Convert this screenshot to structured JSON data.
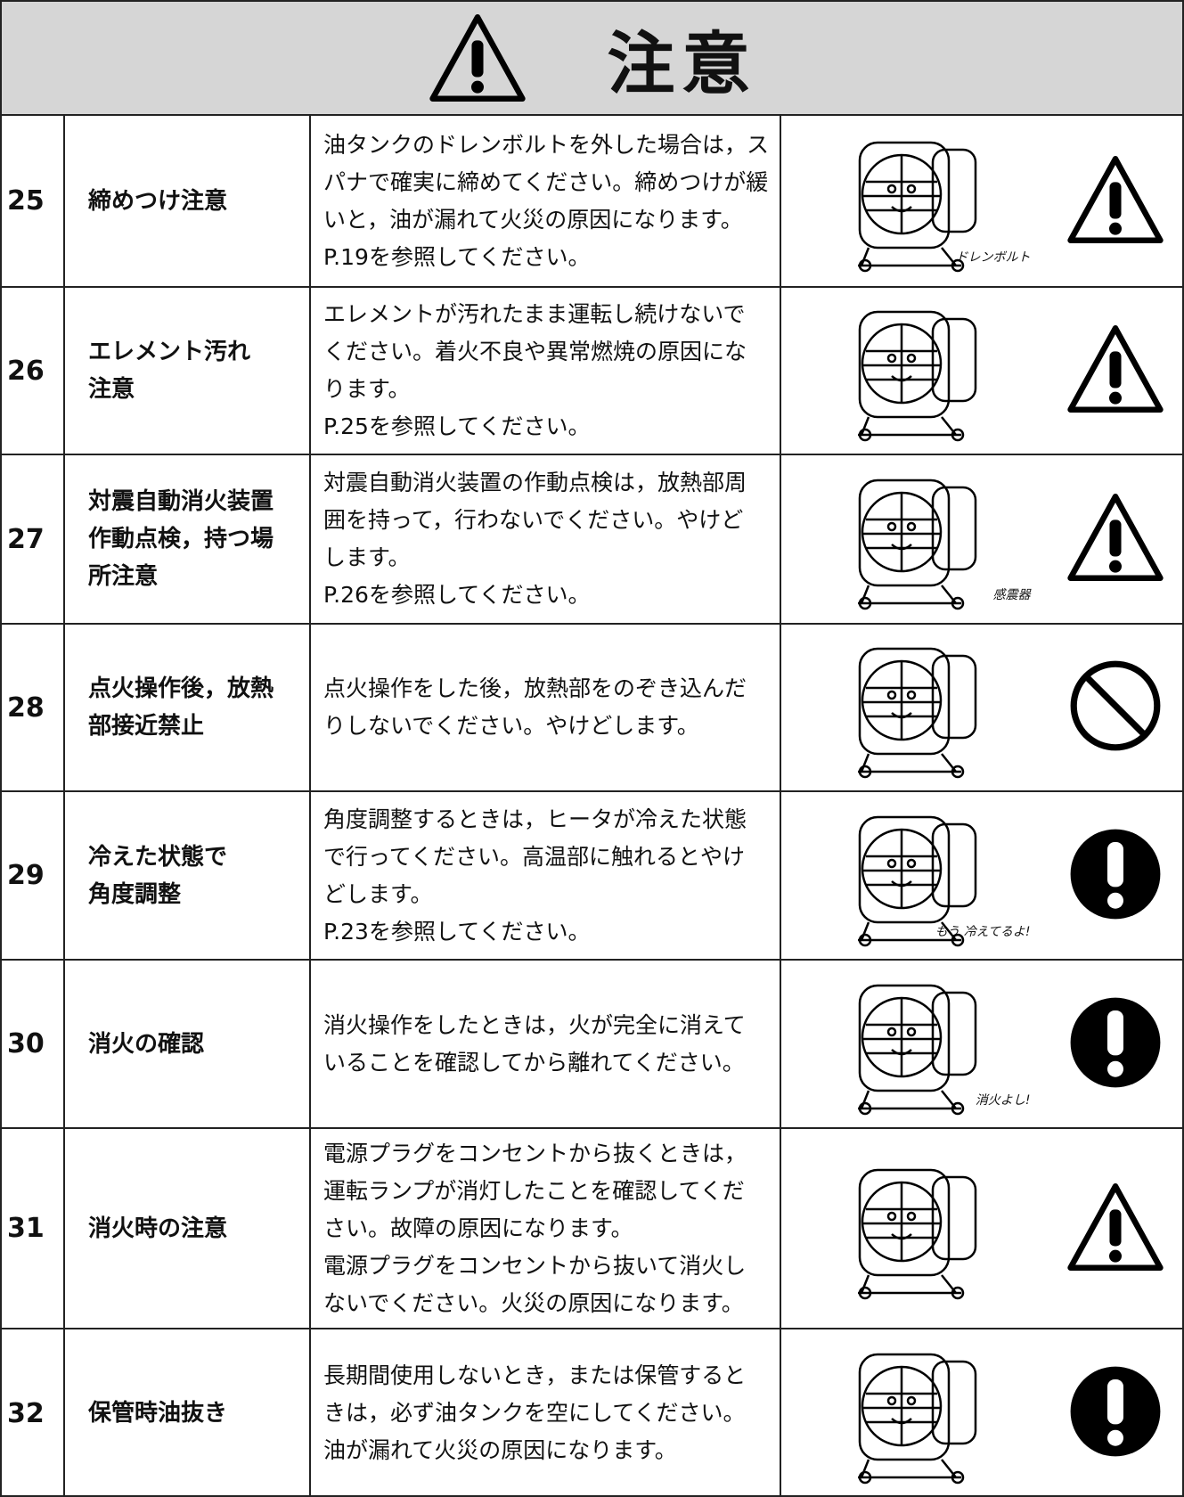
{
  "header": {
    "title": "注意"
  },
  "rows": [
    {
      "number": "25",
      "title": [
        "締めつけ注意"
      ],
      "description": [
        "油タンクのドレンボルトを外した場合は，ス",
        "パナで確実に締めてください。締めつけが緩",
        "いと，油が漏れて火災の原因になります。",
        "P.19を参照してください。"
      ],
      "note": "ドレンボルト"
    },
    {
      "number": "26",
      "title": [
        "エレメント汚れ",
        "注意"
      ],
      "description": [
        "エレメントが汚れたまま運転し続けないで",
        "ください。着火不良や異常燃焼の原因にな",
        "ります。",
        "P.25を参照してください。"
      ]
    },
    {
      "number": "27",
      "title": [
        "対震自動消火装置",
        "作動点検，持つ場",
        "所注意"
      ],
      "description": [
        "対震自動消火装置の作動点検は，放熱部周",
        "囲を持って，行わないでください。やけど",
        "します。",
        "P.26を参照してください。"
      ],
      "note": "感震器"
    },
    {
      "number": "28",
      "title": [
        "点火操作後，放熱",
        "部接近禁止"
      ],
      "description": [
        "点火操作をした後，放熱部をのぞき込んだ",
        "りしないでください。やけどします。"
      ]
    },
    {
      "number": "29",
      "title": [
        "冷えた状態で",
        "角度調整"
      ],
      "description": [
        "角度調整するときは，ヒータが冷えた状態",
        "で行ってください。高温部に触れるとやけ",
        "どします。",
        "P.23を参照してください。"
      ],
      "note": "もう 冷えてるよ!"
    },
    {
      "number": "30",
      "title": [
        "消火の確認"
      ],
      "description": [
        "消火操作をしたときは，火が完全に消えて",
        "いることを確認してから離れてください。"
      ],
      "note": "消火よし!"
    },
    {
      "number": "31",
      "title": [
        "消火時の注意"
      ],
      "description": [
        "電源プラグをコンセントから抜くときは，",
        "運転ランプが消灯したことを確認してくだ",
        "さい。故障の原因になります。",
        "電源プラグをコンセントから抜いて消火し",
        "ないでください。火災の原因になります。"
      ]
    },
    {
      "number": "32",
      "title": [
        "保管時油抜き"
      ],
      "description": [
        "長期間使用しないとき，または保管すると",
        "きは，必ず油タンクを空にしてください。",
        "油が漏れて火災の原因になります。"
      ]
    }
  ]
}
